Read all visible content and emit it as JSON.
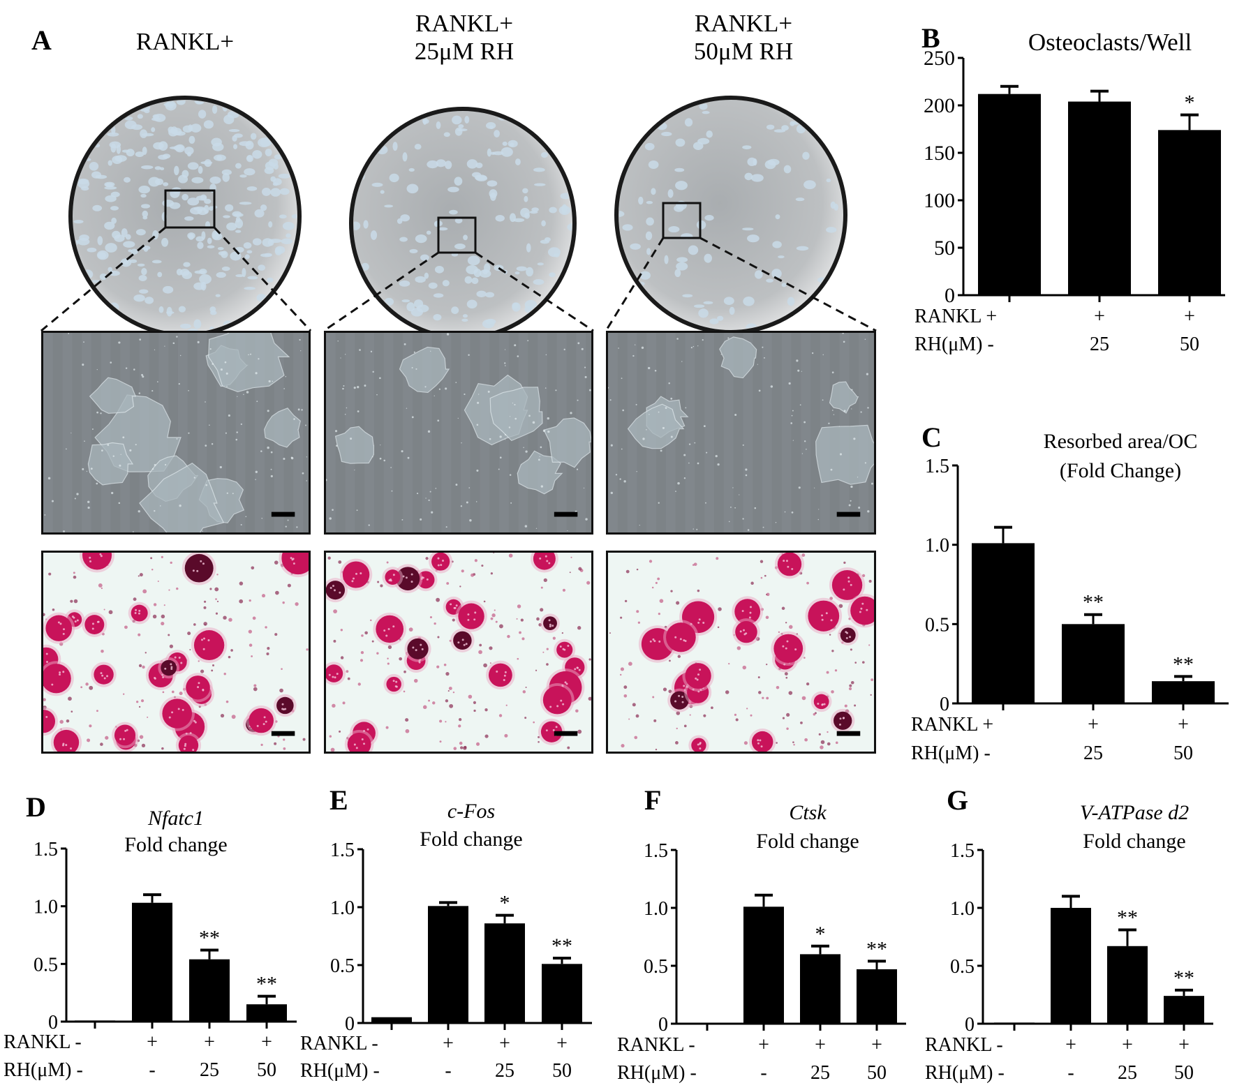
{
  "figure": {
    "panel_a": {
      "letter": "A",
      "conditions": [
        {
          "title": "RANKL+",
          "density": "high"
        },
        {
          "title": "RANKL+\n25μM RH",
          "density": "medium"
        },
        {
          "title": "RANKL+\n50μM RH",
          "density": "low"
        }
      ],
      "rows": [
        "resorption-pit-micrograph",
        "trap-stain-micrograph"
      ],
      "colors": {
        "well_fill": "#b9bcbe",
        "well_spot": "#c9dbe8",
        "well_rim": "#1a1a1a",
        "pit_bg": "#7d8387",
        "pit_spot": "#a9b6bc",
        "trap_bg": "#eef6f3",
        "trap_cell": "#c8135a",
        "trap_dark": "#5a0a2a"
      }
    }
  },
  "chart_data": [
    {
      "id": "B",
      "type": "bar",
      "letter": "B",
      "title": "Osteoclasts/Well",
      "title_italic": "",
      "ylabel": "",
      "ylim": [
        0,
        250
      ],
      "yticks": [
        "0",
        "50",
        "100",
        "150",
        "200",
        "250"
      ],
      "row_labels": [
        "RANKL",
        "RH(μM)"
      ],
      "categories": [
        {
          "rankl": "+",
          "rh": "-"
        },
        {
          "rankl": "+",
          "rh": "25"
        },
        {
          "rankl": "+",
          "rh": "50"
        }
      ],
      "values": [
        212,
        204,
        174
      ],
      "errors": [
        8,
        11,
        16
      ],
      "significance": [
        "",
        "",
        "*"
      ],
      "bar_color": "#000000",
      "grid": false
    },
    {
      "id": "C",
      "type": "bar",
      "letter": "C",
      "title": "Resorbed area/OC",
      "title2": "(Fold Change)",
      "title_italic": "",
      "ylabel": "",
      "ylim": [
        0,
        1.5
      ],
      "yticks": [
        "0",
        "0.5",
        "1.0",
        "1.5"
      ],
      "row_labels": [
        "RANKL",
        "RH(μM)"
      ],
      "categories": [
        {
          "rankl": "+",
          "rh": "-"
        },
        {
          "rankl": "+",
          "rh": "25"
        },
        {
          "rankl": "+",
          "rh": "50"
        }
      ],
      "values": [
        1.01,
        0.5,
        0.14
      ],
      "errors": [
        0.1,
        0.06,
        0.03
      ],
      "significance": [
        "",
        "**",
        "**"
      ],
      "bar_color": "#000000",
      "grid": false
    },
    {
      "id": "D",
      "type": "bar",
      "letter": "D",
      "title_italic": "Nfatc1",
      "title": "Fold change",
      "ylabel": "",
      "ylim": [
        0,
        1.5
      ],
      "yticks": [
        "0",
        "0.5",
        "1.0",
        "1.5"
      ],
      "row_labels": [
        "RANKL",
        "RH(μM)"
      ],
      "categories": [
        {
          "rankl": "-",
          "rh": "-"
        },
        {
          "rankl": "+",
          "rh": "-"
        },
        {
          "rankl": "+",
          "rh": "25"
        },
        {
          "rankl": "+",
          "rh": "50"
        }
      ],
      "values": [
        0.01,
        1.03,
        0.54,
        0.15
      ],
      "errors": [
        0.0,
        0.07,
        0.08,
        0.07
      ],
      "significance": [
        "",
        "",
        "**",
        "**"
      ],
      "bar_color": "#000000",
      "grid": false
    },
    {
      "id": "E",
      "type": "bar",
      "letter": "E",
      "title_italic": "c-Fos",
      "title": "Fold change",
      "ylabel": "",
      "ylim": [
        0,
        1.5
      ],
      "yticks": [
        "0",
        "0.5",
        "1.0",
        "1.5"
      ],
      "row_labels": [
        "RANKL",
        "RH(μM)"
      ],
      "categories": [
        {
          "rankl": "-",
          "rh": "-"
        },
        {
          "rankl": "+",
          "rh": "-"
        },
        {
          "rankl": "+",
          "rh": "25"
        },
        {
          "rankl": "+",
          "rh": "50"
        }
      ],
      "values": [
        0.05,
        1.01,
        0.86,
        0.51
      ],
      "errors": [
        0.0,
        0.03,
        0.07,
        0.05
      ],
      "significance": [
        "",
        "",
        "*",
        "**"
      ],
      "bar_color": "#000000",
      "grid": false
    },
    {
      "id": "F",
      "type": "bar",
      "letter": "F",
      "title_italic": "Ctsk",
      "title": "Fold change",
      "ylabel": "",
      "ylim": [
        0,
        1.5
      ],
      "yticks": [
        "0",
        "0.5",
        "1.0",
        "1.5"
      ],
      "row_labels": [
        "RANKL",
        "RH(μM)"
      ],
      "categories": [
        {
          "rankl": "-",
          "rh": "-"
        },
        {
          "rankl": "+",
          "rh": "-"
        },
        {
          "rankl": "+",
          "rh": "25"
        },
        {
          "rankl": "+",
          "rh": "50"
        }
      ],
      "values": [
        0.0,
        1.01,
        0.6,
        0.47
      ],
      "errors": [
        0.0,
        0.1,
        0.07,
        0.07
      ],
      "significance": [
        "",
        "",
        "*",
        "**"
      ],
      "bar_color": "#000000",
      "grid": false
    },
    {
      "id": "G",
      "type": "bar",
      "letter": "G",
      "title_italic": "V-ATPase d2",
      "title": "Fold change",
      "ylabel": "",
      "ylim": [
        0,
        1.5
      ],
      "yticks": [
        "0",
        "0.5",
        "1.0",
        "1.5"
      ],
      "row_labels": [
        "RANKL",
        "RH(μM)"
      ],
      "categories": [
        {
          "rankl": "-",
          "rh": "-"
        },
        {
          "rankl": "+",
          "rh": "-"
        },
        {
          "rankl": "+",
          "rh": "25"
        },
        {
          "rankl": "+",
          "rh": "50"
        }
      ],
      "values": [
        0.01,
        1.0,
        0.67,
        0.24
      ],
      "errors": [
        0.0,
        0.1,
        0.14,
        0.05
      ],
      "significance": [
        "",
        "",
        "**",
        "**"
      ],
      "bar_color": "#000000",
      "grid": false
    }
  ]
}
